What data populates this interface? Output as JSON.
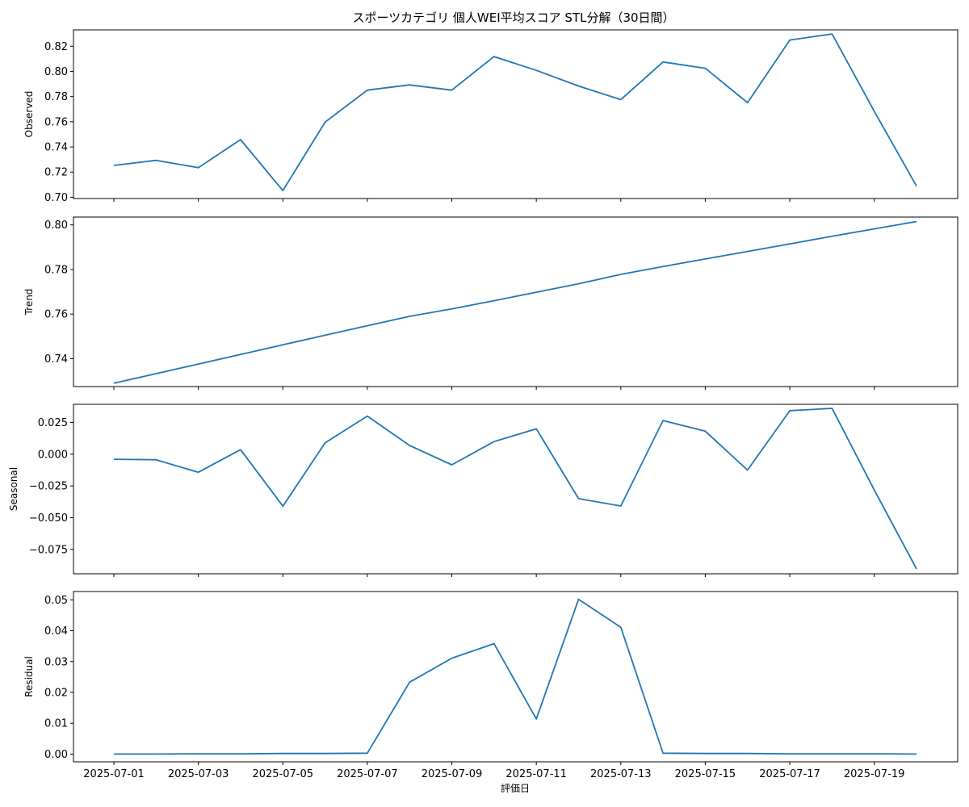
{
  "chart_data": {
    "type": "line",
    "title": "スポーツカテゴリ 個人WEI平均スコア STL分解（30日間）",
    "xlabel": "評価日",
    "x_tick_labels": [
      "2025-07-01",
      "2025-07-03",
      "2025-07-05",
      "2025-07-07",
      "2025-07-09",
      "2025-07-11",
      "2025-07-13",
      "2025-07-15",
      "2025-07-17",
      "2025-07-19"
    ],
    "dates": [
      "2025-07-01",
      "2025-07-02",
      "2025-07-03",
      "2025-07-04",
      "2025-07-05",
      "2025-07-06",
      "2025-07-07",
      "2025-07-08",
      "2025-07-09",
      "2025-07-10",
      "2025-07-11",
      "2025-07-12",
      "2025-07-13",
      "2025-07-14",
      "2025-07-15",
      "2025-07-16",
      "2025-07-17",
      "2025-07-18",
      "2025-07-19",
      "2025-07-20"
    ],
    "series_color": "#1f77b4",
    "panels": [
      {
        "ylabel": "Observed",
        "ylim": [
          0.699,
          0.833
        ],
        "yticks": [
          0.7,
          0.72,
          0.74,
          0.76,
          0.78,
          0.8,
          0.82
        ],
        "ytick_labels": [
          "0.70",
          "0.72",
          "0.74",
          "0.76",
          "0.78",
          "0.80",
          "0.82"
        ],
        "values": [
          0.7253,
          0.7293,
          0.7235,
          0.7458,
          0.7053,
          0.7597,
          0.7851,
          0.7893,
          0.7851,
          0.8118,
          0.8008,
          0.7884,
          0.7776,
          0.8075,
          0.8025,
          0.7752,
          0.8249,
          0.8297,
          0.7683,
          0.7089
        ]
      },
      {
        "ylabel": "Trend",
        "ylim": [
          0.7275,
          0.8035
        ],
        "yticks": [
          0.74,
          0.76,
          0.78,
          0.8
        ],
        "ytick_labels": [
          "0.74",
          "0.76",
          "0.78",
          "0.80"
        ],
        "values": [
          0.729,
          0.7333,
          0.7376,
          0.7419,
          0.7462,
          0.7505,
          0.7548,
          0.759,
          0.7623,
          0.766,
          0.7698,
          0.7736,
          0.7778,
          0.7813,
          0.7847,
          0.7881,
          0.7915,
          0.7949,
          0.7982,
          0.8015
        ]
      },
      {
        "ylabel": "Seasonal",
        "ylim": [
          -0.0942,
          0.0393
        ],
        "yticks": [
          -0.075,
          -0.05,
          -0.025,
          0.0,
          0.025
        ],
        "ytick_labels": [
          "−0.075",
          "−0.050",
          "−0.025",
          "0.000",
          "0.025"
        ],
        "values": [
          -0.004,
          -0.0044,
          -0.0142,
          0.0036,
          -0.0409,
          0.009,
          0.03,
          0.0069,
          -0.0084,
          0.0099,
          0.02,
          -0.035,
          -0.0408,
          0.0265,
          0.0181,
          -0.0125,
          0.0343,
          0.0361,
          -0.0282,
          -0.0903
        ]
      },
      {
        "ylabel": "Residual",
        "ylim": [
          -0.0025,
          0.0527
        ],
        "yticks": [
          0.0,
          0.01,
          0.02,
          0.03,
          0.04,
          0.05
        ],
        "ytick_labels": [
          "0.00",
          "0.01",
          "0.02",
          "0.03",
          "0.04",
          "0.05"
        ],
        "values": [
          0.0,
          0.0,
          0.0001,
          0.0001,
          0.0002,
          0.0002,
          0.0003,
          0.0233,
          0.0311,
          0.0358,
          0.0114,
          0.0502,
          0.0411,
          0.0003,
          0.0002,
          0.0002,
          0.0001,
          0.0001,
          0.0001,
          0.0
        ]
      }
    ]
  }
}
